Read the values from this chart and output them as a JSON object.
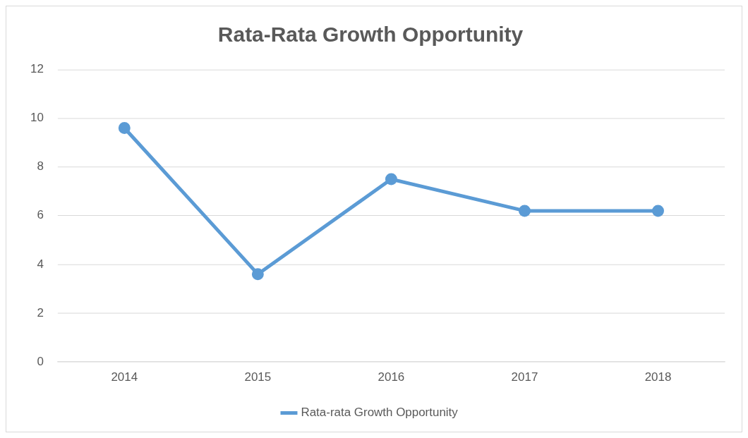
{
  "chart_data": {
    "type": "line",
    "title": "Rata-Rata Growth Opportunity",
    "categories": [
      "2014",
      "2015",
      "2016",
      "2017",
      "2018"
    ],
    "series": [
      {
        "name": "Rata-rata Growth Opportunity",
        "color": "#5b9bd5",
        "values": [
          9.6,
          3.6,
          7.5,
          6.2,
          6.2
        ]
      }
    ],
    "ylim": [
      0,
      12
    ],
    "yticks": [
      0,
      2,
      4,
      6,
      8,
      10,
      12
    ],
    "grid": "y",
    "legend": "bottom",
    "marker": "circle",
    "line_style": "solid"
  }
}
